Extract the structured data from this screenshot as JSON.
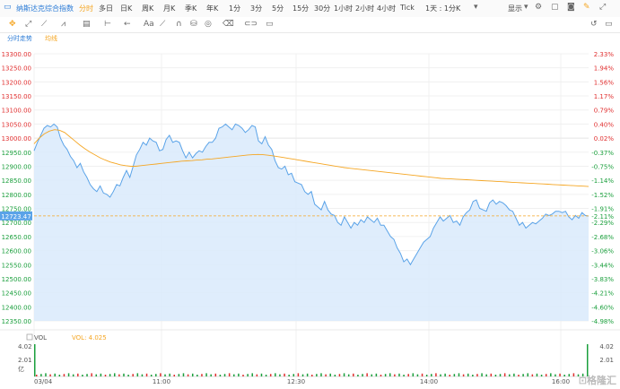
{
  "toolbar": {
    "instrument": "纳斯达克综合指数",
    "periods": [
      "分时",
      "多日",
      "日K",
      "周K",
      "月K",
      "季K",
      "年K",
      "1分",
      "3分",
      "5分",
      "15分",
      "30分",
      "1小时",
      "2小时",
      "4小时",
      "Tick"
    ],
    "active_period": "分时",
    "day_period_select": "1天 : 1分K",
    "display_label": "显示"
  },
  "subbar": {
    "trend_label": "分时走势",
    "avg_label": "均线"
  },
  "colors": {
    "price_line": "#5aa3e8",
    "price_fill": "#d9eafb",
    "avg_line": "#f5a623",
    "red": "#e03030",
    "green": "#1a9f3c",
    "title_blue": "#2b7bd6"
  },
  "chart_data": {
    "type": "line",
    "title": "",
    "y_left_labels": [
      "13300.00",
      "13250.00",
      "13200.00",
      "13150.00",
      "13100.00",
      "13050.00",
      "13000.00",
      "12950.00",
      "12900.00",
      "12850.00",
      "12800.00",
      "12750.00",
      "12700.00",
      "12650.00",
      "12600.00",
      "12550.00",
      "12500.00",
      "12450.00",
      "12400.00",
      "12350.00"
    ],
    "y_right_labels": [
      "2.33%",
      "1.94%",
      "1.56%",
      "1.17%",
      "0.79%",
      "0.40%",
      "0.02%",
      "-0.37%",
      "-0.75%",
      "-1.14%",
      "-1.52%",
      "-1.91%",
      "-2.29%",
      "-2.68%",
      "-3.06%",
      "-3.44%",
      "-3.83%",
      "-4.21%",
      "-4.60%",
      "-4.98%"
    ],
    "ylim": [
      12350,
      13300
    ],
    "reference_line": 13000,
    "current_price": "12723.47",
    "current_pct": "-2.11%",
    "x_labels": [
      "03/04",
      "11:00",
      "12:30",
      "14:00",
      "16:00"
    ],
    "series": [
      {
        "name": "分时",
        "values": [
          12955,
          12985,
          13010,
          13035,
          13045,
          13040,
          13050,
          13040,
          13000,
          12975,
          12960,
          12935,
          12920,
          12895,
          12910,
          12880,
          12860,
          12835,
          12820,
          12810,
          12830,
          12805,
          12800,
          12790,
          12810,
          12835,
          12830,
          12860,
          12885,
          12860,
          12900,
          12940,
          12960,
          12985,
          12975,
          13000,
          12990,
          12985,
          12955,
          12960,
          12995,
          13010,
          12985,
          12990,
          12985,
          12955,
          12930,
          12950,
          12930,
          12945,
          12955,
          12950,
          12970,
          12985,
          12985,
          13000,
          13035,
          13040,
          13050,
          13040,
          13030,
          13050,
          13045,
          13035,
          13020,
          13030,
          13045,
          13040,
          12990,
          12980,
          13005,
          12975,
          12960,
          12920,
          12895,
          12890,
          12900,
          12870,
          12875,
          12845,
          12840,
          12835,
          12810,
          12800,
          12810,
          12765,
          12755,
          12745,
          12775,
          12745,
          12730,
          12725,
          12700,
          12690,
          12720,
          12700,
          12680,
          12700,
          12690,
          12710,
          12700,
          12720,
          12710,
          12700,
          12715,
          12690,
          12690,
          12670,
          12650,
          12640,
          12610,
          12590,
          12560,
          12570,
          12550,
          12570,
          12590,
          12610,
          12630,
          12640,
          12650,
          12680,
          12700,
          12720,
          12705,
          12715,
          12725,
          12700,
          12705,
          12690,
          12720,
          12735,
          12745,
          12775,
          12780,
          12750,
          12745,
          12740,
          12770,
          12780,
          12765,
          12775,
          12770,
          12760,
          12745,
          12740,
          12715,
          12690,
          12700,
          12680,
          12690,
          12700,
          12695,
          12705,
          12715,
          12730,
          12725,
          12730,
          12740,
          12740,
          12735,
          12740,
          12720,
          12710,
          12725,
          12715,
          12735,
          12725,
          12723
        ]
      },
      {
        "name": "均线",
        "values": [
          12980,
          13000,
          13015,
          13025,
          13030,
          13028,
          13020,
          13005,
          12990,
          12975,
          12962,
          12950,
          12940,
          12930,
          12922,
          12915,
          12910,
          12905,
          12902,
          12900,
          12900,
          12902,
          12904,
          12906,
          12908,
          12910,
          12912,
          12914,
          12916,
          12918,
          12919,
          12920,
          12922,
          12923,
          12925,
          12926,
          12928,
          12930,
          12932,
          12934,
          12936,
          12938,
          12940,
          12941,
          12942,
          12941,
          12939,
          12937,
          12934,
          12931,
          12928,
          12925,
          12922,
          12919,
          12916,
          12913,
          12910,
          12907,
          12904,
          12901,
          12898,
          12895,
          12893,
          12891,
          12889,
          12887,
          12885,
          12883,
          12881,
          12879,
          12877,
          12875,
          12873,
          12871,
          12869,
          12867,
          12865,
          12863,
          12861,
          12859,
          12857,
          12856,
          12855,
          12854,
          12853,
          12852,
          12851,
          12850,
          12849,
          12848,
          12847,
          12846,
          12845,
          12844,
          12843,
          12842,
          12841,
          12840,
          12839,
          12838,
          12837,
          12836,
          12835,
          12834,
          12833,
          12832,
          12831,
          12830,
          12829,
          12828
        ]
      }
    ],
    "volume": {
      "label": "VOL",
      "value_label": "VOL: 4.025",
      "y_labels": [
        "4.02",
        "2.01",
        "亿"
      ],
      "right_labels": [
        "4.02",
        "2.01"
      ]
    }
  }
}
